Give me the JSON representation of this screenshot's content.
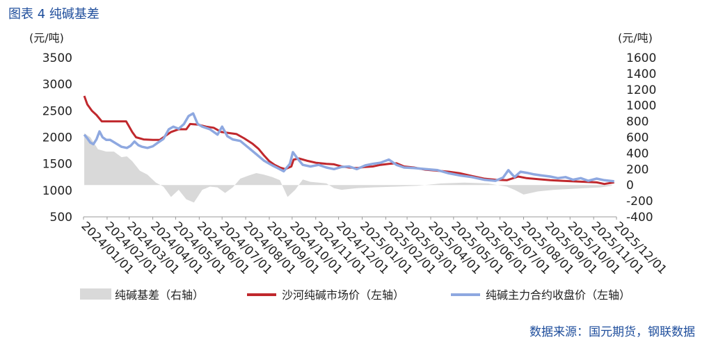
{
  "title": "图表 4 纯碱基差",
  "source": "数据来源：国元期货，钢联数据",
  "chart_data": {
    "type": "line",
    "left_axis": {
      "unit": "(元/吨)",
      "min": 500,
      "max": 3500,
      "ticks": [
        500,
        1000,
        1500,
        2000,
        2500,
        3000,
        3500
      ]
    },
    "right_axis": {
      "unit": "(元/吨)",
      "min": -400,
      "max": 1600,
      "ticks": [
        -400,
        -200,
        0,
        200,
        400,
        600,
        800,
        1000,
        1200,
        1400,
        1600
      ]
    },
    "x_ticks": [
      "2024/01/01",
      "2024/02/01",
      "2024/03/01",
      "2024/04/01",
      "2024/05/01",
      "2024/06/01",
      "2024/07/01",
      "2024/08/01",
      "2024/09/01",
      "2024/10/01",
      "2024/11/01",
      "2024/12/01",
      "2025/01/01",
      "2025/02/01",
      "2025/03/01",
      "2025/04/01",
      "2025/05/01",
      "2025/06/01",
      "2025/07/01",
      "2025/08/01",
      "2025/09/01",
      "2025/10/01",
      "2025/11/01",
      "2025/12/01"
    ],
    "series": [
      {
        "name": "纯碱基差（右轴）",
        "axis": "right",
        "kind": "area",
        "color": "#d9d9d9",
        "points": [
          [
            "2024/01/02",
            650
          ],
          [
            "2024/01/10",
            600
          ],
          [
            "2024/01/20",
            450
          ],
          [
            "2024/01/31",
            420
          ],
          [
            "2024/02/10",
            420
          ],
          [
            "2024/02/20",
            350
          ],
          [
            "2024/02/27",
            360
          ],
          [
            "2024/03/05",
            300
          ],
          [
            "2024/03/15",
            180
          ],
          [
            "2024/03/25",
            130
          ],
          [
            "2024/04/05",
            30
          ],
          [
            "2024/04/15",
            -20
          ],
          [
            "2024/04/25",
            -150
          ],
          [
            "2024/05/05",
            -60
          ],
          [
            "2024/05/15",
            -180
          ],
          [
            "2024/05/25",
            -220
          ],
          [
            "2024/06/05",
            -60
          ],
          [
            "2024/06/15",
            -20
          ],
          [
            "2024/06/25",
            -30
          ],
          [
            "2024/07/05",
            -100
          ],
          [
            "2024/07/15",
            -30
          ],
          [
            "2024/07/25",
            80
          ],
          [
            "2024/08/05",
            120
          ],
          [
            "2024/08/15",
            150
          ],
          [
            "2024/08/25",
            130
          ],
          [
            "2024/09/05",
            100
          ],
          [
            "2024/09/15",
            60
          ],
          [
            "2024/09/25",
            -150
          ],
          [
            "2024/10/05",
            -60
          ],
          [
            "2024/10/15",
            70
          ],
          [
            "2024/10/25",
            40
          ],
          [
            "2024/11/05",
            30
          ],
          [
            "2024/11/15",
            20
          ],
          [
            "2024/11/25",
            -40
          ],
          [
            "2024/12/05",
            -60
          ],
          [
            "2024/12/15",
            -50
          ],
          [
            "2024/12/25",
            -40
          ],
          [
            "2025/01/15",
            -30
          ],
          [
            "2025/02/15",
            -20
          ],
          [
            "2025/03/15",
            -10
          ],
          [
            "2025/04/15",
            20
          ],
          [
            "2025/05/15",
            30
          ],
          [
            "2025/06/15",
            20
          ],
          [
            "2025/07/10",
            -20
          ],
          [
            "2025/07/20",
            -60
          ],
          [
            "2025/08/01",
            -120
          ],
          [
            "2025/08/20",
            -80
          ],
          [
            "2025/09/10",
            -60
          ],
          [
            "2025/10/01",
            -50
          ],
          [
            "2025/10/20",
            -40
          ],
          [
            "2025/11/10",
            -30
          ],
          [
            "2025/11/25",
            -10
          ]
        ]
      },
      {
        "name": "沙河纯碱市场价（左轴）",
        "axis": "left",
        "kind": "line",
        "color": "#c0282d",
        "points": [
          [
            "2024/01/02",
            2780
          ],
          [
            "2024/01/06",
            2620
          ],
          [
            "2024/01/12",
            2500
          ],
          [
            "2024/01/18",
            2420
          ],
          [
            "2024/01/25",
            2300
          ],
          [
            "2024/02/10",
            2300
          ],
          [
            "2024/02/26",
            2300
          ],
          [
            "2024/03/01",
            2200
          ],
          [
            "2024/03/05",
            2100
          ],
          [
            "2024/03/10",
            2000
          ],
          [
            "2024/03/20",
            1960
          ],
          [
            "2024/04/01",
            1950
          ],
          [
            "2024/04/10",
            1950
          ],
          [
            "2024/04/20",
            2050
          ],
          [
            "2024/04/25",
            2100
          ],
          [
            "2024/05/05",
            2150
          ],
          [
            "2024/05/15",
            2150
          ],
          [
            "2024/05/20",
            2250
          ],
          [
            "2024/05/30",
            2240
          ],
          [
            "2024/06/10",
            2200
          ],
          [
            "2024/06/20",
            2180
          ],
          [
            "2024/06/30",
            2100
          ],
          [
            "2024/07/10",
            2080
          ],
          [
            "2024/07/20",
            2060
          ],
          [
            "2024/07/30",
            1980
          ],
          [
            "2024/08/10",
            1880
          ],
          [
            "2024/08/18",
            1780
          ],
          [
            "2024/08/25",
            1660
          ],
          [
            "2024/09/01",
            1550
          ],
          [
            "2024/09/08",
            1480
          ],
          [
            "2024/09/15",
            1430
          ],
          [
            "2024/09/22",
            1400
          ],
          [
            "2024/09/30",
            1450
          ],
          [
            "2024/10/03",
            1580
          ],
          [
            "2024/10/10",
            1600
          ],
          [
            "2024/10/20",
            1560
          ],
          [
            "2024/11/01",
            1520
          ],
          [
            "2024/11/15",
            1500
          ],
          [
            "2024/11/25",
            1490
          ],
          [
            "2024/12/05",
            1450
          ],
          [
            "2024/12/15",
            1430
          ],
          [
            "2024/12/25",
            1420
          ],
          [
            "2025/01/05",
            1440
          ],
          [
            "2025/01/15",
            1450
          ],
          [
            "2025/01/25",
            1480
          ],
          [
            "2025/02/05",
            1500
          ],
          [
            "2025/02/15",
            1510
          ],
          [
            "2025/02/25",
            1450
          ],
          [
            "2025/03/10",
            1430
          ],
          [
            "2025/03/25",
            1390
          ],
          [
            "2025/04/10",
            1370
          ],
          [
            "2025/04/25",
            1350
          ],
          [
            "2025/05/10",
            1320
          ],
          [
            "2025/05/25",
            1270
          ],
          [
            "2025/06/10",
            1220
          ],
          [
            "2025/06/25",
            1200
          ],
          [
            "2025/07/10",
            1190
          ],
          [
            "2025/07/25",
            1260
          ],
          [
            "2025/08/05",
            1230
          ],
          [
            "2025/08/20",
            1210
          ],
          [
            "2025/09/05",
            1190
          ],
          [
            "2025/09/20",
            1180
          ],
          [
            "2025/10/05",
            1170
          ],
          [
            "2025/10/20",
            1160
          ],
          [
            "2025/11/05",
            1150
          ],
          [
            "2025/11/15",
            1120
          ],
          [
            "2025/11/28",
            1150
          ]
        ]
      },
      {
        "name": "纯碱主力合约收盘价（左轴）",
        "axis": "left",
        "kind": "line",
        "color": "#8ea8e0",
        "points": [
          [
            "2024/01/02",
            2050
          ],
          [
            "2024/01/06",
            1980
          ],
          [
            "2024/01/10",
            1900
          ],
          [
            "2024/01/14",
            1870
          ],
          [
            "2024/01/18",
            1960
          ],
          [
            "2024/01/22",
            2110
          ],
          [
            "2024/01/26",
            2000
          ],
          [
            "2024/01/31",
            1950
          ],
          [
            "2024/02/05",
            1950
          ],
          [
            "2024/02/20",
            1820
          ],
          [
            "2024/02/27",
            1800
          ],
          [
            "2024/03/03",
            1840
          ],
          [
            "2024/03/08",
            1920
          ],
          [
            "2024/03/13",
            1850
          ],
          [
            "2024/03/18",
            1820
          ],
          [
            "2024/03/25",
            1800
          ],
          [
            "2024/04/01",
            1830
          ],
          [
            "2024/04/08",
            1900
          ],
          [
            "2024/04/15",
            1970
          ],
          [
            "2024/04/22",
            2150
          ],
          [
            "2024/04/28",
            2200
          ],
          [
            "2024/05/05",
            2160
          ],
          [
            "2024/05/12",
            2250
          ],
          [
            "2024/05/18",
            2400
          ],
          [
            "2024/05/24",
            2450
          ],
          [
            "2024/05/30",
            2250
          ],
          [
            "2024/06/05",
            2200
          ],
          [
            "2024/06/15",
            2150
          ],
          [
            "2024/06/25",
            2050
          ],
          [
            "2024/07/01",
            2200
          ],
          [
            "2024/07/08",
            2020
          ],
          [
            "2024/07/15",
            1960
          ],
          [
            "2024/07/25",
            1930
          ],
          [
            "2024/08/05",
            1800
          ],
          [
            "2024/08/15",
            1680
          ],
          [
            "2024/08/25",
            1560
          ],
          [
            "2024/09/05",
            1470
          ],
          [
            "2024/09/12",
            1420
          ],
          [
            "2024/09/20",
            1360
          ],
          [
            "2024/09/28",
            1500
          ],
          [
            "2024/10/02",
            1720
          ],
          [
            "2024/10/08",
            1600
          ],
          [
            "2024/10/15",
            1480
          ],
          [
            "2024/10/25",
            1450
          ],
          [
            "2024/11/05",
            1480
          ],
          [
            "2024/11/15",
            1430
          ],
          [
            "2024/11/25",
            1400
          ],
          [
            "2024/12/05",
            1440
          ],
          [
            "2024/12/15",
            1450
          ],
          [
            "2024/12/25",
            1400
          ],
          [
            "2025/01/05",
            1470
          ],
          [
            "2025/01/15",
            1500
          ],
          [
            "2025/01/25",
            1520
          ],
          [
            "2025/02/05",
            1580
          ],
          [
            "2025/02/15",
            1480
          ],
          [
            "2025/02/25",
            1430
          ],
          [
            "2025/03/10",
            1420
          ],
          [
            "2025/03/25",
            1400
          ],
          [
            "2025/04/10",
            1380
          ],
          [
            "2025/04/25",
            1320
          ],
          [
            "2025/05/10",
            1280
          ],
          [
            "2025/05/25",
            1250
          ],
          [
            "2025/06/10",
            1200
          ],
          [
            "2025/06/25",
            1180
          ],
          [
            "2025/07/05",
            1240
          ],
          [
            "2025/07/12",
            1380
          ],
          [
            "2025/07/20",
            1250
          ],
          [
            "2025/07/28",
            1350
          ],
          [
            "2025/08/05",
            1330
          ],
          [
            "2025/08/15",
            1300
          ],
          [
            "2025/08/25",
            1280
          ],
          [
            "2025/09/05",
            1260
          ],
          [
            "2025/09/15",
            1230
          ],
          [
            "2025/09/25",
            1250
          ],
          [
            "2025/10/05",
            1200
          ],
          [
            "2025/10/15",
            1230
          ],
          [
            "2025/10/25",
            1180
          ],
          [
            "2025/11/05",
            1220
          ],
          [
            "2025/11/15",
            1190
          ],
          [
            "2025/11/28",
            1170
          ]
        ]
      }
    ],
    "legend": [
      "纯碱基差（右轴）",
      "沙河纯碱市场价（左轴）",
      "纯碱主力合约收盘价（左轴）"
    ],
    "legend_position": "bottom",
    "grid": false
  }
}
